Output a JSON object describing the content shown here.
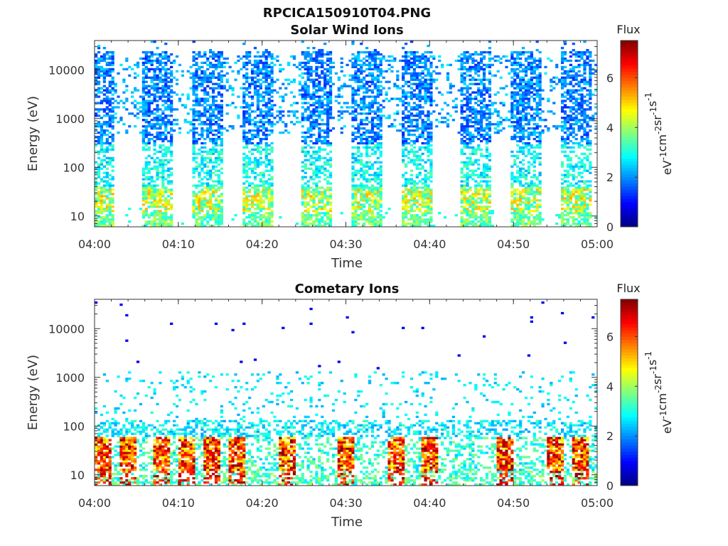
{
  "figure": {
    "title": "RPCICA150910T04.PNG"
  },
  "colorbar": {
    "label": "Flux",
    "unit_base": [
      "eV",
      "cm",
      "sr",
      "s"
    ],
    "unit_exp": [
      "-1",
      "-2",
      "-1",
      "-1"
    ],
    "range": [
      0,
      7.5
    ],
    "ticks": [
      "0",
      "2",
      "4",
      "6"
    ],
    "colormap": "jet"
  },
  "chart_data": [
    {
      "type": "heatmap",
      "title": "Solar Wind Ions",
      "xlabel": "Time",
      "ylabel": "Energy (eV)",
      "y_scale": "log",
      "ylim": [
        6,
        40000
      ],
      "xlim": [
        "04:00",
        "05:00"
      ],
      "x_ticks": [
        "04:00",
        "04:10",
        "04:20",
        "04:30",
        "04:40",
        "04:50",
        "05:00"
      ],
      "y_ticks": [
        "10",
        "100",
        "1000",
        "10000"
      ],
      "grid": false,
      "colorbar": "right",
      "time_bursts": [
        {
          "start": "04:00",
          "end": "04:02"
        },
        {
          "start": "04:06",
          "end": "04:09"
        },
        {
          "start": "04:12",
          "end": "04:15"
        },
        {
          "start": "04:18",
          "end": "04:21"
        },
        {
          "start": "04:25",
          "end": "04:28"
        },
        {
          "start": "04:31",
          "end": "04:34"
        },
        {
          "start": "04:37",
          "end": "04:40"
        },
        {
          "start": "04:44",
          "end": "04:47"
        },
        {
          "start": "04:50",
          "end": "04:53"
        },
        {
          "start": "04:56",
          "end": "04:59"
        }
      ],
      "dominant_energy_range_eV": [
        300,
        20000
      ],
      "peak_flux_energy_eV": 20,
      "peak_flux": 5
    },
    {
      "type": "heatmap",
      "title": "Cometary Ions",
      "xlabel": "Time",
      "ylabel": "Energy (eV)",
      "y_scale": "log",
      "ylim": [
        6,
        40000
      ],
      "xlim": [
        "04:00",
        "05:00"
      ],
      "x_ticks": [
        "04:00",
        "04:10",
        "04:20",
        "04:30",
        "04:40",
        "04:50",
        "05:00"
      ],
      "y_ticks": [
        "10",
        "100",
        "1000",
        "10000"
      ],
      "grid": false,
      "colorbar": "right",
      "high_flux_bursts": [
        {
          "time": "04:01"
        },
        {
          "time": "04:04"
        },
        {
          "time": "04:08"
        },
        {
          "time": "04:11"
        },
        {
          "time": "04:14"
        },
        {
          "time": "04:17"
        },
        {
          "time": "04:23"
        },
        {
          "time": "04:30"
        },
        {
          "time": "04:36"
        },
        {
          "time": "04:40"
        },
        {
          "time": "04:49"
        },
        {
          "time": "04:55"
        },
        {
          "time": "04:58"
        }
      ],
      "dominant_energy_range_eV": [
        7,
        60
      ],
      "peak_flux": 7.5
    }
  ]
}
